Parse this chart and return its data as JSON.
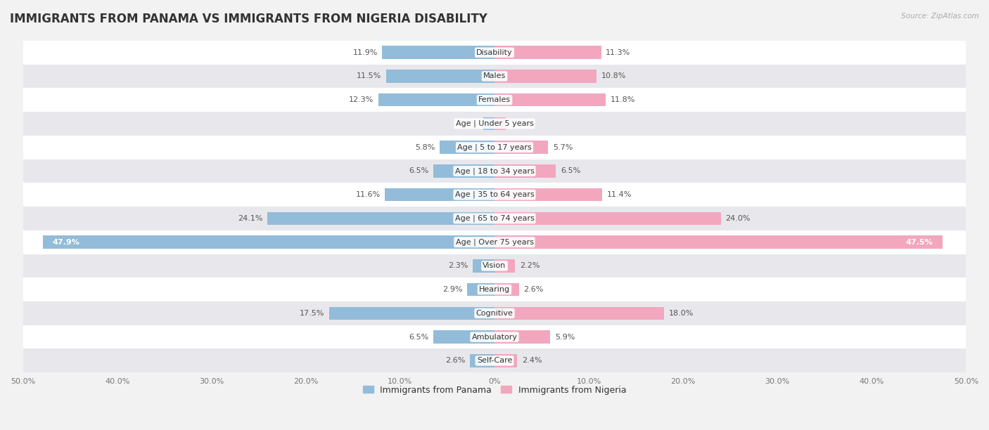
{
  "title": "IMMIGRANTS FROM PANAMA VS IMMIGRANTS FROM NIGERIA DISABILITY",
  "source": "Source: ZipAtlas.com",
  "categories": [
    "Disability",
    "Males",
    "Females",
    "Age | Under 5 years",
    "Age | 5 to 17 years",
    "Age | 18 to 34 years",
    "Age | 35 to 64 years",
    "Age | 65 to 74 years",
    "Age | Over 75 years",
    "Vision",
    "Hearing",
    "Cognitive",
    "Ambulatory",
    "Self-Care"
  ],
  "panama_values": [
    11.9,
    11.5,
    12.3,
    1.2,
    5.8,
    6.5,
    11.6,
    24.1,
    47.9,
    2.3,
    2.9,
    17.5,
    6.5,
    2.6
  ],
  "nigeria_values": [
    11.3,
    10.8,
    11.8,
    1.2,
    5.7,
    6.5,
    11.4,
    24.0,
    47.5,
    2.2,
    2.6,
    18.0,
    5.9,
    2.4
  ],
  "panama_color": "#92bcd9",
  "nigeria_color": "#f2a7be",
  "bar_height": 0.55,
  "xlim": 50.0,
  "bg_color": "#f2f2f2",
  "row_color_odd": "#ffffff",
  "row_color_even": "#e8e8ec",
  "title_fontsize": 12,
  "value_fontsize": 8,
  "cat_fontsize": 8,
  "axis_label_fontsize": 8,
  "legend_fontsize": 9
}
